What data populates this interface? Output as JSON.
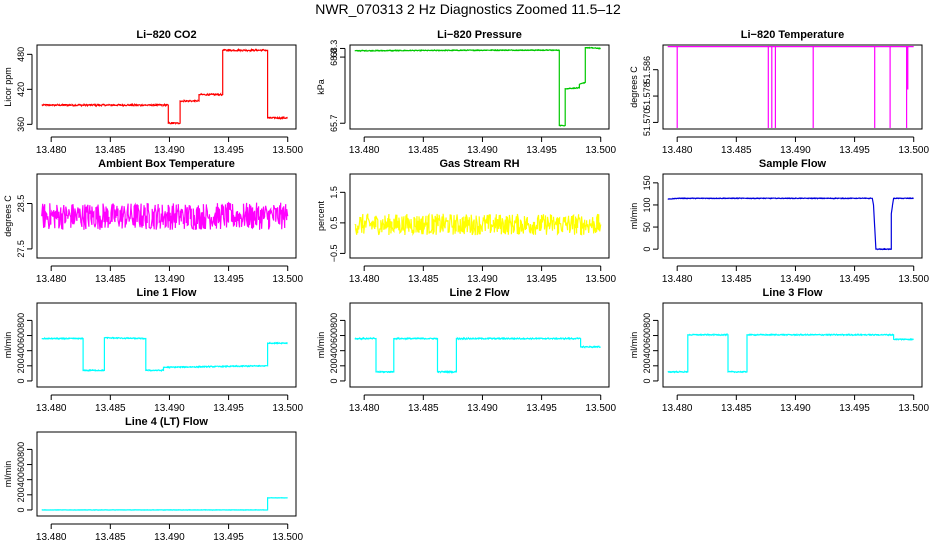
{
  "title": "NWR_070313  2 Hz Diagnostics Zoomed 11.5–12",
  "chart_data": [
    {
      "type": "line",
      "title": "Li−820 CO2",
      "xlabel": "",
      "ylabel": "Licor ppm",
      "color": "#ff0000",
      "xlim": [
        13.4788,
        13.5007
      ],
      "ylim": [
        352,
        496
      ],
      "xticks": [
        "13.480",
        "13.485",
        "13.490",
        "13.495",
        "13.500"
      ],
      "yticks": [
        {
          "v": 360,
          "label": "360"
        },
        {
          "v": 420,
          "label": "420"
        },
        {
          "v": 480,
          "label": "480"
        }
      ],
      "noise": 1.2,
      "x": [
        13.4792,
        13.48,
        13.485,
        13.4899,
        13.4899,
        13.4909,
        13.4909,
        13.4925,
        13.4925,
        13.4945,
        13.4945,
        13.4983,
        13.4983,
        13.5
      ],
      "y": [
        393,
        393,
        393,
        393,
        362,
        362,
        400,
        400,
        411,
        411,
        487,
        487,
        371,
        371
      ]
    },
    {
      "type": "line",
      "title": "Li−820 Pressure",
      "xlabel": "",
      "ylabel": "kPa",
      "color": "#00c800",
      "xlim": [
        13.4788,
        13.5007
      ],
      "ylim": [
        65.5,
        68.42
      ],
      "xticks": [
        "13.480",
        "13.485",
        "13.490",
        "13.495",
        "13.500"
      ],
      "yticks": [
        {
          "v": 65.7,
          "label": "65.7"
        },
        {
          "v": 68.0,
          "label": "68.0"
        },
        {
          "v": 68.3,
          "label": "68.3"
        }
      ],
      "noise": 0.012,
      "x": [
        13.4792,
        13.4855,
        13.4905,
        13.4965,
        13.4965,
        13.497,
        13.497,
        13.4982,
        13.4982,
        13.4987,
        13.4987,
        13.5
      ],
      "y": [
        68.22,
        68.23,
        68.24,
        68.24,
        65.62,
        65.62,
        66.9,
        66.93,
        67.05,
        67.12,
        68.33,
        68.3
      ]
    },
    {
      "type": "line",
      "title": "Li−820 Temperature",
      "xlabel": "",
      "ylabel": "degrees C",
      "color": "#ff00ff",
      "xlim": [
        13.4788,
        13.5007
      ],
      "ylim": [
        51.568,
        51.5935
      ],
      "xticks": [
        "13.480",
        "13.485",
        "13.490",
        "13.495",
        "13.500"
      ],
      "yticks": [
        {
          "v": 51.57,
          "label": "51.570"
        },
        {
          "v": 51.578,
          "label": "51.578"
        },
        {
          "v": 51.586,
          "label": "51.586"
        }
      ],
      "noise": 0,
      "x": [
        13.4792,
        13.48,
        13.48,
        13.48,
        13.4877,
        13.4877,
        13.4877,
        13.488,
        13.488,
        13.488,
        13.4883,
        13.4883,
        13.4883,
        13.4915,
        13.4915,
        13.4915,
        13.4967,
        13.4967,
        13.4967,
        13.498,
        13.498,
        13.498,
        13.4994,
        13.4994,
        13.4994,
        13.4995,
        13.4995,
        13.4995,
        13.5
      ],
      "y": [
        51.593,
        51.593,
        51.568,
        51.593,
        51.593,
        51.568,
        51.593,
        51.593,
        51.568,
        51.593,
        51.593,
        51.568,
        51.593,
        51.593,
        51.568,
        51.593,
        51.593,
        51.568,
        51.593,
        51.593,
        51.568,
        51.593,
        51.593,
        51.568,
        51.593,
        51.593,
        51.58,
        51.593,
        51.593
      ]
    },
    {
      "type": "line",
      "title": "Ambient Box Temperature",
      "xlabel": "",
      "ylabel": "degrees C",
      "color": "#ff00ff",
      "xlim": [
        13.4788,
        13.5007
      ],
      "ylim": [
        27.3,
        29.15
      ],
      "xticks": [
        "13.480",
        "13.485",
        "13.490",
        "13.495",
        "13.500"
      ],
      "yticks": [
        {
          "v": 27.5,
          "label": "27.5"
        },
        {
          "v": 28.5,
          "label": "28.5"
        }
      ],
      "noise": 0.3,
      "x": [
        13.4792,
        13.5
      ],
      "y": [
        28.22,
        28.22
      ]
    },
    {
      "type": "line",
      "title": "Gas Stream RH",
      "xlabel": "",
      "ylabel": "percent",
      "color": "#ffff00",
      "xlim": [
        13.4788,
        13.5007
      ],
      "ylim": [
        -0.65,
        2.1
      ],
      "xticks": [
        "13.480",
        "13.485",
        "13.490",
        "13.495",
        "13.500"
      ],
      "yticks": [
        {
          "v": -0.5,
          "label": "−0.5"
        },
        {
          "v": 0.5,
          "label": "0.5"
        },
        {
          "v": 1.5,
          "label": "1.5"
        }
      ],
      "noise": 0.35,
      "x": [
        13.4792,
        13.5
      ],
      "y": [
        0.45,
        0.45
      ]
    },
    {
      "type": "line",
      "title": "Sample Flow",
      "xlabel": "",
      "ylabel": "ml/min",
      "color": "#0000dd",
      "xlim": [
        13.4788,
        13.5007
      ],
      "ylim": [
        -20,
        170
      ],
      "xticks": [
        "13.480",
        "13.485",
        "13.490",
        "13.495",
        "13.500"
      ],
      "yticks": [
        {
          "v": 0,
          "label": "0"
        },
        {
          "v": 50,
          "label": "50"
        },
        {
          "v": 100,
          "label": "100"
        },
        {
          "v": 150,
          "label": "150"
        }
      ],
      "noise": 0.6,
      "x": [
        13.4792,
        13.48,
        13.4965,
        13.4966,
        13.4968,
        13.4981,
        13.4981,
        13.4983,
        13.5
      ],
      "y": [
        113,
        115,
        115,
        100,
        0,
        0,
        80,
        115,
        115
      ]
    },
    {
      "type": "line",
      "title": "Line 1 Flow",
      "xlabel": "",
      "ylabel": "ml/min",
      "color": "#00ffff",
      "xlim": [
        13.4788,
        13.5007
      ],
      "ylim": [
        -80,
        1030
      ],
      "xticks": [
        "13.480",
        "13.485",
        "13.490",
        "13.495",
        "13.500"
      ],
      "yticks": [
        {
          "v": 0,
          "label": "0"
        },
        {
          "v": 200,
          "label": "200"
        },
        {
          "v": 400,
          "label": "400"
        },
        {
          "v": 600,
          "label": "600"
        },
        {
          "v": 800,
          "label": "800"
        }
      ],
      "noise": 6,
      "x": [
        13.4792,
        13.4827,
        13.4827,
        13.4845,
        13.4845,
        13.488,
        13.488,
        13.4895,
        13.4895,
        13.4983,
        13.4983,
        13.5
      ],
      "y": [
        560,
        560,
        140,
        140,
        570,
        560,
        140,
        140,
        180,
        200,
        500,
        500
      ]
    },
    {
      "type": "line",
      "title": "Line 2 Flow",
      "xlabel": "",
      "ylabel": "ml/min",
      "color": "#00ffff",
      "xlim": [
        13.4788,
        13.5007
      ],
      "ylim": [
        -80,
        1030
      ],
      "xticks": [
        "13.480",
        "13.485",
        "13.490",
        "13.495",
        "13.500"
      ],
      "yticks": [
        {
          "v": 0,
          "label": "0"
        },
        {
          "v": 200,
          "label": "200"
        },
        {
          "v": 400,
          "label": "400"
        },
        {
          "v": 600,
          "label": "600"
        },
        {
          "v": 800,
          "label": "800"
        }
      ],
      "noise": 7,
      "x": [
        13.4792,
        13.481,
        13.481,
        13.4825,
        13.4825,
        13.4862,
        13.4862,
        13.4878,
        13.4878,
        13.4983,
        13.4983,
        13.5
      ],
      "y": [
        560,
        560,
        120,
        120,
        560,
        560,
        120,
        120,
        560,
        560,
        450,
        450
      ]
    },
    {
      "type": "line",
      "title": "Line 3 Flow",
      "xlabel": "",
      "ylabel": "ml/min",
      "color": "#00ffff",
      "xlim": [
        13.4788,
        13.5007
      ],
      "ylim": [
        -80,
        1030
      ],
      "xticks": [
        "13.480",
        "13.485",
        "13.490",
        "13.495",
        "13.500"
      ],
      "yticks": [
        {
          "v": 0,
          "label": "0"
        },
        {
          "v": 200,
          "label": "200"
        },
        {
          "v": 400,
          "label": "400"
        },
        {
          "v": 600,
          "label": "600"
        },
        {
          "v": 800,
          "label": "800"
        }
      ],
      "noise": 6,
      "x": [
        13.4792,
        13.4809,
        13.4809,
        13.4843,
        13.4843,
        13.4859,
        13.4859,
        13.4983,
        13.4983,
        13.5
      ],
      "y": [
        120,
        120,
        610,
        610,
        120,
        120,
        610,
        610,
        550,
        550
      ]
    },
    {
      "type": "line",
      "title": "Line 4 (LT) Flow",
      "xlabel": "",
      "ylabel": "ml/min",
      "color": "#00ffff",
      "xlim": [
        13.4788,
        13.5007
      ],
      "ylim": [
        -80,
        1030
      ],
      "xticks": [
        "13.480",
        "13.485",
        "13.490",
        "13.495",
        "13.500"
      ],
      "yticks": [
        {
          "v": 0,
          "label": "0"
        },
        {
          "v": 200,
          "label": "200"
        },
        {
          "v": 400,
          "label": "400"
        },
        {
          "v": 600,
          "label": "600"
        },
        {
          "v": 800,
          "label": "800"
        }
      ],
      "noise": 1.5,
      "x": [
        13.4792,
        13.4983,
        13.4983,
        13.5
      ],
      "y": [
        0,
        0,
        160,
        160
      ]
    }
  ]
}
